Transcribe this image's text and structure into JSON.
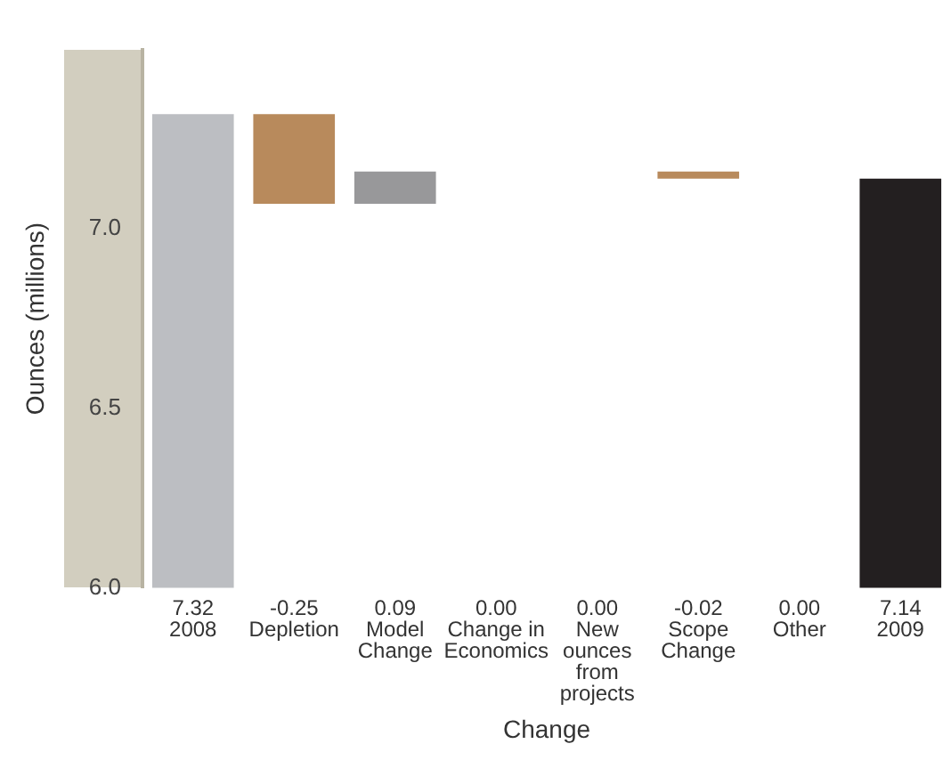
{
  "chart_data": {
    "type": "bar",
    "xlabel": "Change",
    "ylabel": "Ounces (millions)",
    "categories": [
      "2008",
      "Depletion",
      "Model Change",
      "Change in Economics",
      "New ounces from projects",
      "Scope Change",
      "Other",
      "2009"
    ],
    "values": [
      7.32,
      -0.25,
      0.09,
      0.0,
      0.0,
      -0.02,
      0.0,
      7.14
    ],
    "base": [
      null,
      7.32,
      7.07,
      null,
      null,
      7.16,
      null,
      null
    ],
    "value_labels": [
      "7.32",
      "-0.25",
      "0.09",
      "0.00",
      "0.00",
      "-0.02",
      "0.00",
      "7.14"
    ],
    "colors": [
      "#bcbec2",
      "#b88a5c",
      "#98989a",
      "#98989a",
      "#98989a",
      "#b88a5c",
      "#98989a",
      "#231f20"
    ],
    "ylim": [
      6.0,
      7.5
    ],
    "yticks": [
      {
        "value": 6,
        "label": "6.0"
      },
      {
        "value": 6.5,
        "label": "6.5"
      },
      {
        "value": 7,
        "label": "7.0"
      }
    ],
    "grid": false,
    "legend": false
  }
}
